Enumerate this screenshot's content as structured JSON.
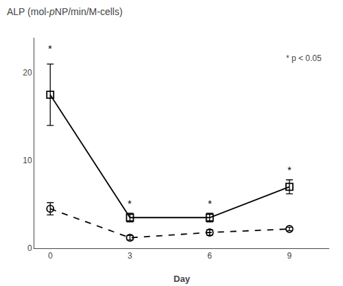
{
  "chart_data": {
    "type": "line",
    "title": "ALP (mol-pNP/min/M-cells)",
    "xlabel": "Day",
    "x": [
      0,
      3,
      6,
      9
    ],
    "series": [
      {
        "values": [
          17.5,
          3.5,
          3.5,
          7.0
        ],
        "errors": [
          3.5,
          0.5,
          0.5,
          0.8
        ],
        "color": "#000000",
        "marker": "square-open",
        "line_style": "solid"
      },
      {
        "values": [
          4.5,
          1.2,
          1.8,
          2.2
        ],
        "errors": [
          0.7,
          0.25,
          0.3,
          0.2
        ],
        "color": "#000000",
        "marker": "circle-open",
        "line_style": "dashed"
      }
    ],
    "xlim": [
      -0.6,
      10.5
    ],
    "xticks": [
      0,
      3,
      6,
      9
    ],
    "ylim": [
      0,
      24
    ],
    "yticks": [
      0,
      10,
      20
    ],
    "grid": false,
    "annotations": [
      {
        "text": "* p < 0.05"
      },
      {
        "text": "*",
        "x": 0,
        "y": 22.0
      },
      {
        "text": "*",
        "x": 3,
        "y": 4.3
      },
      {
        "text": "*",
        "x": 6,
        "y": 4.3
      },
      {
        "text": "*",
        "x": 9,
        "y": 8.1
      }
    ]
  }
}
